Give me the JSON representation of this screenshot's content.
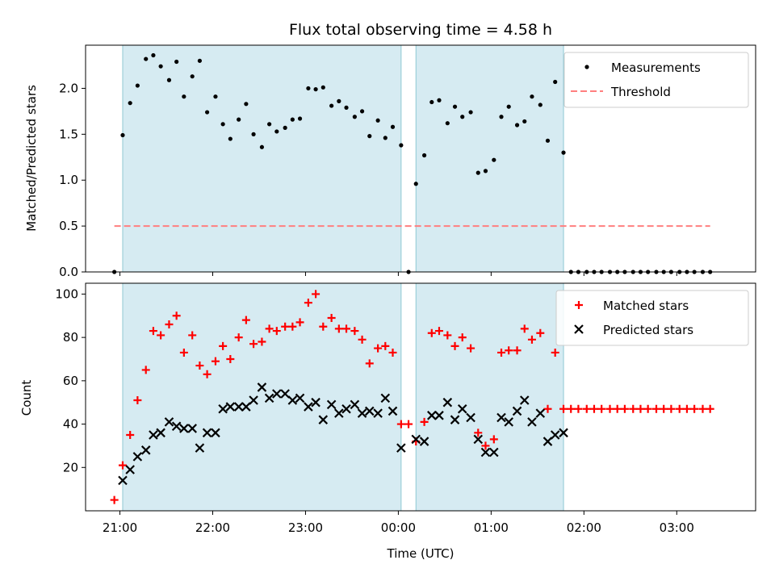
{
  "chart_data": [
    {
      "type": "scatter",
      "title": "Flux total observing time = 4.58 h",
      "xlabel": "",
      "ylabel": "Matched/Predicted stars",
      "xlim": [
        20.63,
        27.85
      ],
      "ylim": [
        0.0,
        2.47
      ],
      "xticks": [
        21,
        22,
        23,
        24,
        25,
        26,
        27
      ],
      "xtick_labels": [
        "21:00",
        "22:00",
        "23:00",
        "00:00",
        "01:00",
        "02:00",
        "03:00"
      ],
      "yticks": [
        0.0,
        0.5,
        1.0,
        1.5,
        2.0
      ],
      "ytick_labels": [
        "0.0",
        "0.5",
        "1.0",
        "1.5",
        "2.0"
      ],
      "legend": "top-right",
      "shaded_intervals": [
        [
          21.03,
          24.03
        ],
        [
          24.19,
          25.78
        ]
      ],
      "series": [
        {
          "name": "Measurements",
          "marker": "dot",
          "color": "#000000",
          "x": [
            20.94,
            21.03,
            21.11,
            21.19,
            21.28,
            21.36,
            21.44,
            21.53,
            21.61,
            21.69,
            21.78,
            21.86,
            21.94,
            22.03,
            22.11,
            22.19,
            22.28,
            22.36,
            22.44,
            22.53,
            22.61,
            22.69,
            22.78,
            22.86,
            22.94,
            23.03,
            23.11,
            23.19,
            23.28,
            23.36,
            23.44,
            23.53,
            23.61,
            23.69,
            23.78,
            23.86,
            23.94,
            24.03,
            24.11,
            24.19,
            24.28,
            24.36,
            24.44,
            24.53,
            24.61,
            24.69,
            24.78,
            24.86,
            24.94,
            25.03,
            25.11,
            25.19,
            25.28,
            25.36,
            25.44,
            25.53,
            25.61,
            25.69,
            25.78,
            25.86,
            25.94,
            26.03,
            26.11,
            26.19,
            26.28,
            26.36,
            26.44,
            26.53,
            26.61,
            26.69,
            26.78,
            26.86,
            26.94,
            27.03,
            27.11,
            27.19,
            27.28,
            27.36
          ],
          "y": [
            0.0,
            1.49,
            1.84,
            2.03,
            2.32,
            2.36,
            2.24,
            2.09,
            2.29,
            1.91,
            2.13,
            2.3,
            1.74,
            1.91,
            1.61,
            1.45,
            1.66,
            1.83,
            1.5,
            1.36,
            1.61,
            1.53,
            1.57,
            1.66,
            1.67,
            2.0,
            1.99,
            2.01,
            1.81,
            1.86,
            1.79,
            1.69,
            1.75,
            1.48,
            1.65,
            1.46,
            1.58,
            1.38,
            0.0,
            0.96,
            1.27,
            1.85,
            1.87,
            1.62,
            1.8,
            1.69,
            1.74,
            1.08,
            1.1,
            1.22,
            1.69,
            1.8,
            1.6,
            1.64,
            1.91,
            1.82,
            1.43,
            2.07,
            1.3,
            0.0,
            0.0,
            0.0,
            0.0,
            0.0,
            0.0,
            0.0,
            0.0,
            0.0,
            0.0,
            0.0,
            0.0,
            0.0,
            0.0,
            0.0,
            0.0,
            0.0,
            0.0,
            0.0
          ]
        },
        {
          "name": "Threshold",
          "marker": "dashed-line",
          "color": "#ff7f7f",
          "x": [
            20.94,
            27.36
          ],
          "y": [
            0.5,
            0.5
          ]
        }
      ]
    },
    {
      "type": "scatter",
      "title": "",
      "xlabel": "Time (UTC)",
      "ylabel": "Count",
      "xlim": [
        20.63,
        27.85
      ],
      "ylim": [
        0.0,
        105.0
      ],
      "xticks": [
        21,
        22,
        23,
        24,
        25,
        26,
        27
      ],
      "xtick_labels": [
        "21:00",
        "22:00",
        "23:00",
        "00:00",
        "01:00",
        "02:00",
        "03:00"
      ],
      "yticks": [
        20,
        40,
        60,
        80,
        100
      ],
      "ytick_labels": [
        "20",
        "40",
        "60",
        "80",
        "100"
      ],
      "legend": "top-right",
      "shaded_intervals": [
        [
          21.03,
          24.03
        ],
        [
          24.19,
          25.78
        ]
      ],
      "series": [
        {
          "name": "Matched stars",
          "marker": "plus",
          "color": "#ff0000",
          "x": [
            20.94,
            21.03,
            21.11,
            21.19,
            21.28,
            21.36,
            21.44,
            21.53,
            21.61,
            21.69,
            21.78,
            21.86,
            21.94,
            22.03,
            22.11,
            22.19,
            22.28,
            22.36,
            22.44,
            22.53,
            22.61,
            22.69,
            22.78,
            22.86,
            22.94,
            23.03,
            23.11,
            23.19,
            23.28,
            23.36,
            23.44,
            23.53,
            23.61,
            23.69,
            23.78,
            23.86,
            23.94,
            24.03,
            24.11,
            24.19,
            24.28,
            24.36,
            24.44,
            24.53,
            24.61,
            24.69,
            24.78,
            24.86,
            24.94,
            25.03,
            25.11,
            25.19,
            25.28,
            25.36,
            25.44,
            25.53,
            25.61,
            25.69,
            25.78,
            25.86,
            25.94,
            26.03,
            26.11,
            26.19,
            26.28,
            26.36,
            26.44,
            26.53,
            26.61,
            26.69,
            26.78,
            26.86,
            26.94,
            27.03,
            27.11,
            27.19,
            27.28,
            27.36
          ],
          "y": [
            5,
            21,
            35,
            51,
            65,
            83,
            81,
            86,
            90,
            73,
            81,
            67,
            63,
            69,
            76,
            70,
            80,
            88,
            77,
            78,
            84,
            83,
            85,
            85,
            87,
            96,
            100,
            85,
            89,
            84,
            84,
            83,
            79,
            68,
            75,
            76,
            73,
            40,
            40,
            32,
            41,
            82,
            83,
            81,
            76,
            80,
            75,
            36,
            30,
            33,
            73,
            74,
            74,
            84,
            79,
            82,
            47,
            73,
            47,
            47,
            47,
            47,
            47,
            47,
            47,
            47,
            47,
            47,
            47,
            47,
            47,
            47,
            47,
            47,
            47,
            47,
            47,
            47
          ]
        },
        {
          "name": "Predicted stars",
          "marker": "x",
          "color": "#000000",
          "x": [
            21.03,
            21.11,
            21.19,
            21.28,
            21.36,
            21.44,
            21.53,
            21.61,
            21.69,
            21.78,
            21.86,
            21.94,
            22.03,
            22.11,
            22.19,
            22.28,
            22.36,
            22.44,
            22.53,
            22.61,
            22.69,
            22.78,
            22.86,
            22.94,
            23.03,
            23.11,
            23.19,
            23.28,
            23.36,
            23.44,
            23.53,
            23.61,
            23.69,
            23.78,
            23.86,
            23.94,
            24.03,
            24.19,
            24.28,
            24.36,
            24.44,
            24.53,
            24.61,
            24.69,
            24.78,
            24.86,
            24.94,
            25.03,
            25.11,
            25.19,
            25.28,
            25.36,
            25.44,
            25.53,
            25.61,
            25.69,
            25.78
          ],
          "y": [
            14,
            19,
            25,
            28,
            35,
            36,
            41,
            39,
            38,
            38,
            29,
            36,
            36,
            47,
            48,
            48,
            48,
            51,
            57,
            52,
            54,
            54,
            51,
            52,
            48,
            50,
            42,
            49,
            45,
            47,
            49,
            45,
            46,
            45,
            52,
            46,
            29,
            33,
            32,
            44,
            44,
            50,
            42,
            47,
            43,
            33,
            27,
            27,
            43,
            41,
            46,
            51,
            41,
            45,
            32,
            35,
            36
          ]
        }
      ]
    }
  ]
}
